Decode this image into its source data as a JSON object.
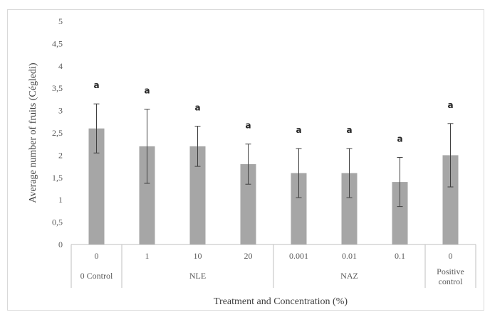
{
  "chart_data": {
    "type": "bar",
    "title": "",
    "ylabel": "Average number of fruits (Cégledi)",
    "xlabel": "Treatment and Concentration (%)",
    "ylim": [
      0,
      5
    ],
    "yticks": [
      "0",
      "0,5",
      "1",
      "1,5",
      "2",
      "2,5",
      "3",
      "3,5",
      "4",
      "4,5",
      "5"
    ],
    "categories": [
      "0",
      "1",
      "10",
      "20",
      "0.001",
      "0.01",
      "0.1",
      "0"
    ],
    "values": [
      2.6,
      2.2,
      2.2,
      1.8,
      1.6,
      1.6,
      1.4,
      2.0
    ],
    "error": [
      0.55,
      0.83,
      0.45,
      0.45,
      0.55,
      0.55,
      0.55,
      0.71
    ],
    "significance": [
      "a",
      "a",
      "a",
      "a",
      "a",
      "a",
      "a",
      "a"
    ],
    "groups": [
      {
        "label": "0 Control",
        "span": 1
      },
      {
        "label": "NLE",
        "span": 3
      },
      {
        "label": "NAZ",
        "span": 3
      },
      {
        "label": "Positive control",
        "lines": [
          "Positive",
          "control"
        ],
        "span": 1
      }
    ],
    "bar_color": "#a6a6a6",
    "grid": false
  }
}
